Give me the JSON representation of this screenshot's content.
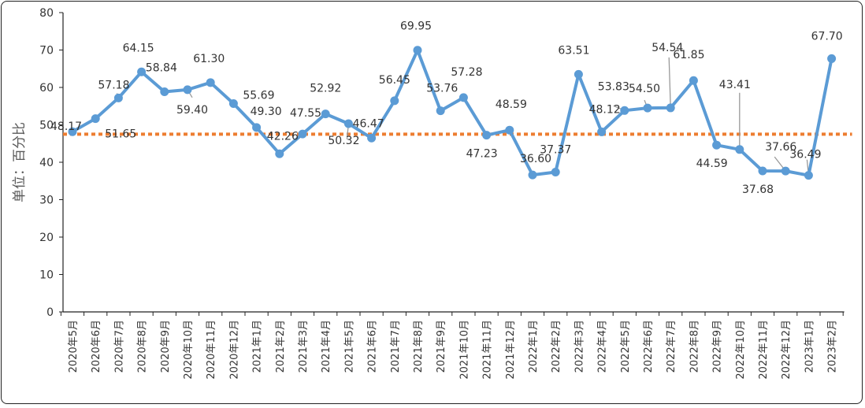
{
  "chart_data": {
    "type": "line",
    "ylabel": "单位：百分比",
    "ylim": [
      0,
      80
    ],
    "yticks": [
      0,
      10,
      20,
      30,
      40,
      50,
      60,
      70,
      80
    ],
    "grid": false,
    "legend": "none",
    "colors": {
      "series": "#5B9BD5",
      "threshold": "#ED7D31"
    },
    "threshold": 47.5,
    "categories": [
      "2020年5月",
      "2020年6月",
      "2020年7月",
      "2020年8月",
      "2020年9月",
      "2020年10月",
      "2020年11月",
      "2020年12月",
      "2021年1月",
      "2021年2月",
      "2021年3月",
      "2021年4月",
      "2021年5月",
      "2021年6月",
      "2021年7月",
      "2021年8月",
      "2021年9月",
      "2021年10月",
      "2021年11月",
      "2021年12月",
      "2022年1月",
      "2022年2月",
      "2022年3月",
      "2022年4月",
      "2022年5月",
      "2022年6月",
      "2022年7月",
      "2022年8月",
      "2022年9月",
      "2022年10月",
      "2022年11月",
      "2022年12月",
      "2023年1月",
      "2023年2月"
    ],
    "series": [
      {
        "values": [
          48.17,
          51.65,
          57.18,
          64.15,
          58.84,
          59.4,
          61.3,
          55.69,
          49.3,
          42.26,
          47.55,
          52.92,
          50.32,
          46.47,
          56.45,
          69.95,
          53.76,
          57.28,
          47.23,
          48.59,
          36.6,
          37.37,
          63.51,
          48.12,
          53.83,
          54.5,
          54.54,
          61.85,
          44.59,
          43.41,
          37.68,
          37.66,
          36.49,
          67.7
        ],
        "labels": [
          "48.17",
          "51.65",
          "57.18",
          "64.15",
          "58.84",
          "59.40",
          "61.30",
          "55.69",
          "49.30",
          "42.26",
          "47.55",
          "52.92",
          "50.32",
          "46.47",
          "56.45",
          "69.95",
          "53.76",
          "57.28",
          "47.23",
          "48.59",
          "36.60",
          "37.37",
          "63.51",
          "48.12",
          "53.83",
          "54.50",
          "54.54",
          "61.85",
          "44.59",
          "43.41",
          "37.68",
          "37.66",
          "36.49",
          "67.70"
        ]
      }
    ]
  }
}
